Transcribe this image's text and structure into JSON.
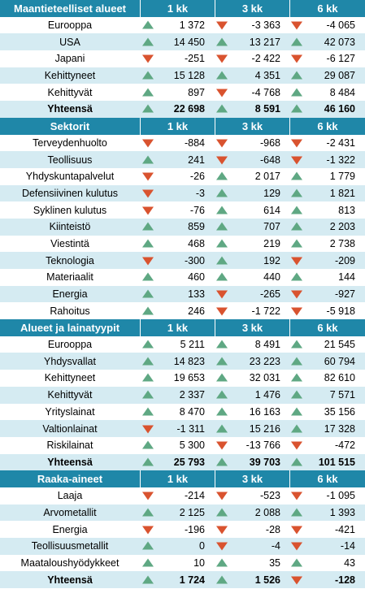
{
  "sections": [
    {
      "header": {
        "label": "Maantieteelliset alueet",
        "c1": "1 kk",
        "c3": "3 kk",
        "c6": "6 kk"
      },
      "rows": [
        {
          "name": "Eurooppa",
          "v1": "1 372",
          "d1": "up",
          "v3": "-3 363",
          "d3": "down",
          "v6": "-4 065",
          "d6": "down"
        },
        {
          "name": "USA",
          "v1": "14 450",
          "d1": "up",
          "v3": "13 217",
          "d3": "up",
          "v6": "42 073",
          "d6": "up"
        },
        {
          "name": "Japani",
          "v1": "-251",
          "d1": "down",
          "v3": "-2 422",
          "d3": "down",
          "v6": "-6 127",
          "d6": "down"
        },
        {
          "name": "Kehittyneet",
          "v1": "15 128",
          "d1": "up",
          "v3": "4 351",
          "d3": "up",
          "v6": "29 087",
          "d6": "up"
        },
        {
          "name": "Kehittyvät",
          "v1": "897",
          "d1": "up",
          "v3": "-4 768",
          "d3": "down",
          "v6": "8 484",
          "d6": "up"
        },
        {
          "name": "Yhteensä",
          "total": true,
          "v1": "22 698",
          "d1": "up",
          "v3": "8 591",
          "d3": "up",
          "v6": "46 160",
          "d6": "up"
        }
      ]
    },
    {
      "header": {
        "label": "Sektorit",
        "c1": "1 kk",
        "c3": "3 kk",
        "c6": "6 kk"
      },
      "rows": [
        {
          "name": "Terveydenhuolto",
          "v1": "-884",
          "d1": "down",
          "v3": "-968",
          "d3": "down",
          "v6": "-2 431",
          "d6": "down"
        },
        {
          "name": "Teollisuus",
          "v1": "241",
          "d1": "up",
          "v3": "-648",
          "d3": "down",
          "v6": "-1 322",
          "d6": "down"
        },
        {
          "name": "Yhdyskuntapalvelut",
          "v1": "-26",
          "d1": "down",
          "v3": "2 017",
          "d3": "up",
          "v6": "1 779",
          "d6": "up"
        },
        {
          "name": "Defensiivinen kulutus",
          "v1": "-3",
          "d1": "down",
          "v3": "129",
          "d3": "up",
          "v6": "1 821",
          "d6": "up"
        },
        {
          "name": "Syklinen kulutus",
          "v1": "-76",
          "d1": "down",
          "v3": "614",
          "d3": "up",
          "v6": "813",
          "d6": "up"
        },
        {
          "name": "Kiinteistö",
          "v1": "859",
          "d1": "up",
          "v3": "707",
          "d3": "up",
          "v6": "2 203",
          "d6": "up"
        },
        {
          "name": "Viestintä",
          "v1": "468",
          "d1": "up",
          "v3": "219",
          "d3": "up",
          "v6": "2 738",
          "d6": "up"
        },
        {
          "name": "Teknologia",
          "v1": "-300",
          "d1": "down",
          "v3": "192",
          "d3": "up",
          "v6": "-209",
          "d6": "down"
        },
        {
          "name": "Materiaalit",
          "v1": "460",
          "d1": "up",
          "v3": "440",
          "d3": "up",
          "v6": "144",
          "d6": "up"
        },
        {
          "name": "Energia",
          "v1": "133",
          "d1": "up",
          "v3": "-265",
          "d3": "down",
          "v6": "-927",
          "d6": "down"
        },
        {
          "name": "Rahoitus",
          "v1": "246",
          "d1": "up",
          "v3": "-1 722",
          "d3": "down",
          "v6": "-5 918",
          "d6": "down"
        }
      ]
    },
    {
      "header": {
        "label": "Alueet ja lainatyypit",
        "c1": "1 kk",
        "c3": "3 kk",
        "c6": "6 kk"
      },
      "rows": [
        {
          "name": "Eurooppa",
          "v1": "5 211",
          "d1": "up",
          "v3": "8 491",
          "d3": "up",
          "v6": "21 545",
          "d6": "up"
        },
        {
          "name": "Yhdysvallat",
          "v1": "14 823",
          "d1": "up",
          "v3": "23 223",
          "d3": "up",
          "v6": "60 794",
          "d6": "up"
        },
        {
          "name": "Kehittyneet",
          "v1": "19 653",
          "d1": "up",
          "v3": "32 031",
          "d3": "up",
          "v6": "82 610",
          "d6": "up"
        },
        {
          "name": "Kehittyvät",
          "v1": "2 337",
          "d1": "up",
          "v3": "1 476",
          "d3": "up",
          "v6": "7 571",
          "d6": "up"
        },
        {
          "name": "Yrityslainat",
          "v1": "8 470",
          "d1": "up",
          "v3": "16 163",
          "d3": "up",
          "v6": "35 156",
          "d6": "up"
        },
        {
          "name": "Valtionlainat",
          "v1": "-1 311",
          "d1": "down",
          "v3": "15 216",
          "d3": "up",
          "v6": "17 328",
          "d6": "up"
        },
        {
          "name": "Riskilainat",
          "v1": "5 300",
          "d1": "up",
          "v3": "-13 766",
          "d3": "down",
          "v6": "-472",
          "d6": "down"
        },
        {
          "name": "Yhteensä",
          "total": true,
          "v1": "25 793",
          "d1": "up",
          "v3": "39 703",
          "d3": "up",
          "v6": "101 515",
          "d6": "up"
        }
      ]
    },
    {
      "header": {
        "label": "Raaka-aineet",
        "c1": "1 kk",
        "c3": "3 kk",
        "c6": "6 kk"
      },
      "rows": [
        {
          "name": "Laaja",
          "v1": "-214",
          "d1": "down",
          "v3": "-523",
          "d3": "down",
          "v6": "-1 095",
          "d6": "down"
        },
        {
          "name": "Arvometallit",
          "v1": "2 125",
          "d1": "up",
          "v3": "2 088",
          "d3": "up",
          "v6": "1 393",
          "d6": "up"
        },
        {
          "name": "Energia",
          "v1": "-196",
          "d1": "down",
          "v3": "-28",
          "d3": "down",
          "v6": "-421",
          "d6": "down"
        },
        {
          "name": "Teollisuusmetallit",
          "v1": "0",
          "d1": "up",
          "v3": "-4",
          "d3": "down",
          "v6": "-14",
          "d6": "down"
        },
        {
          "name": "Maataloushyödykkeet",
          "v1": "10",
          "d1": "up",
          "v3": "35",
          "d3": "up",
          "v6": "43",
          "d6": "up"
        },
        {
          "name": "Yhteensä",
          "total": true,
          "v1": "1 724",
          "d1": "up",
          "v3": "1 526",
          "d3": "up",
          "v6": "-128",
          "d6": "down"
        }
      ]
    }
  ]
}
